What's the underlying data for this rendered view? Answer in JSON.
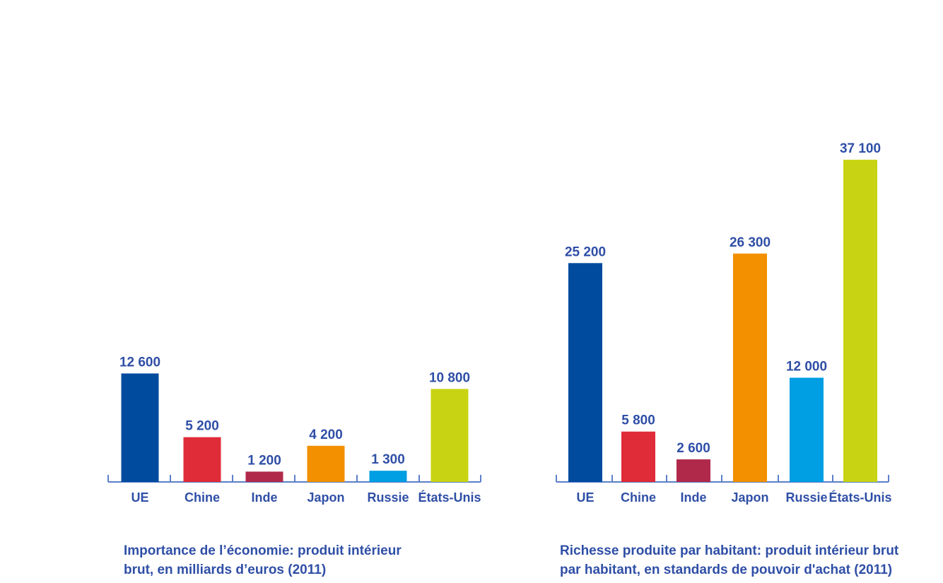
{
  "colors": {
    "text": "#2f4fa6",
    "axis": "#5a80c8",
    "UE": "#004b9e",
    "Chine": "#e02b38",
    "Inde": "#b0294b",
    "Japon": "#f29000",
    "Russie": "#009ee2",
    "États-Unis": "#c8d413"
  },
  "chart_data": [
    {
      "type": "bar",
      "categories": [
        "UE",
        "Chine",
        "Inde",
        "Japon",
        "Russie",
        "États-Unis"
      ],
      "values": [
        12600,
        5200,
        1200,
        4200,
        1300,
        10800
      ],
      "value_labels": [
        "12 600",
        "5 200",
        "1 200",
        "4 200",
        "1 300",
        "10 800"
      ],
      "title": "",
      "caption_lines": [
        "Importance de l’économie: produit intérieur",
        "brut, en milliards d’euros (2011)"
      ],
      "xlabel": "",
      "ylabel": "",
      "ylim": [
        0,
        37100
      ],
      "grid": false,
      "legend": "none"
    },
    {
      "type": "bar",
      "categories": [
        "UE",
        "Chine",
        "Inde",
        "Japon",
        "Russie",
        "États-Unis"
      ],
      "values": [
        25200,
        5800,
        2600,
        26300,
        12000,
        37100
      ],
      "value_labels": [
        "25 200",
        "5 800",
        "2 600",
        "26 300",
        "12 000",
        "37 100"
      ],
      "title": "",
      "caption_lines": [
        "Richesse produite par habitant: produit intérieur brut",
        "par habitant, en standards de pouvoir d'achat (2011)"
      ],
      "xlabel": "",
      "ylabel": "",
      "ylim": [
        0,
        38000
      ],
      "grid": false,
      "legend": "none"
    }
  ]
}
